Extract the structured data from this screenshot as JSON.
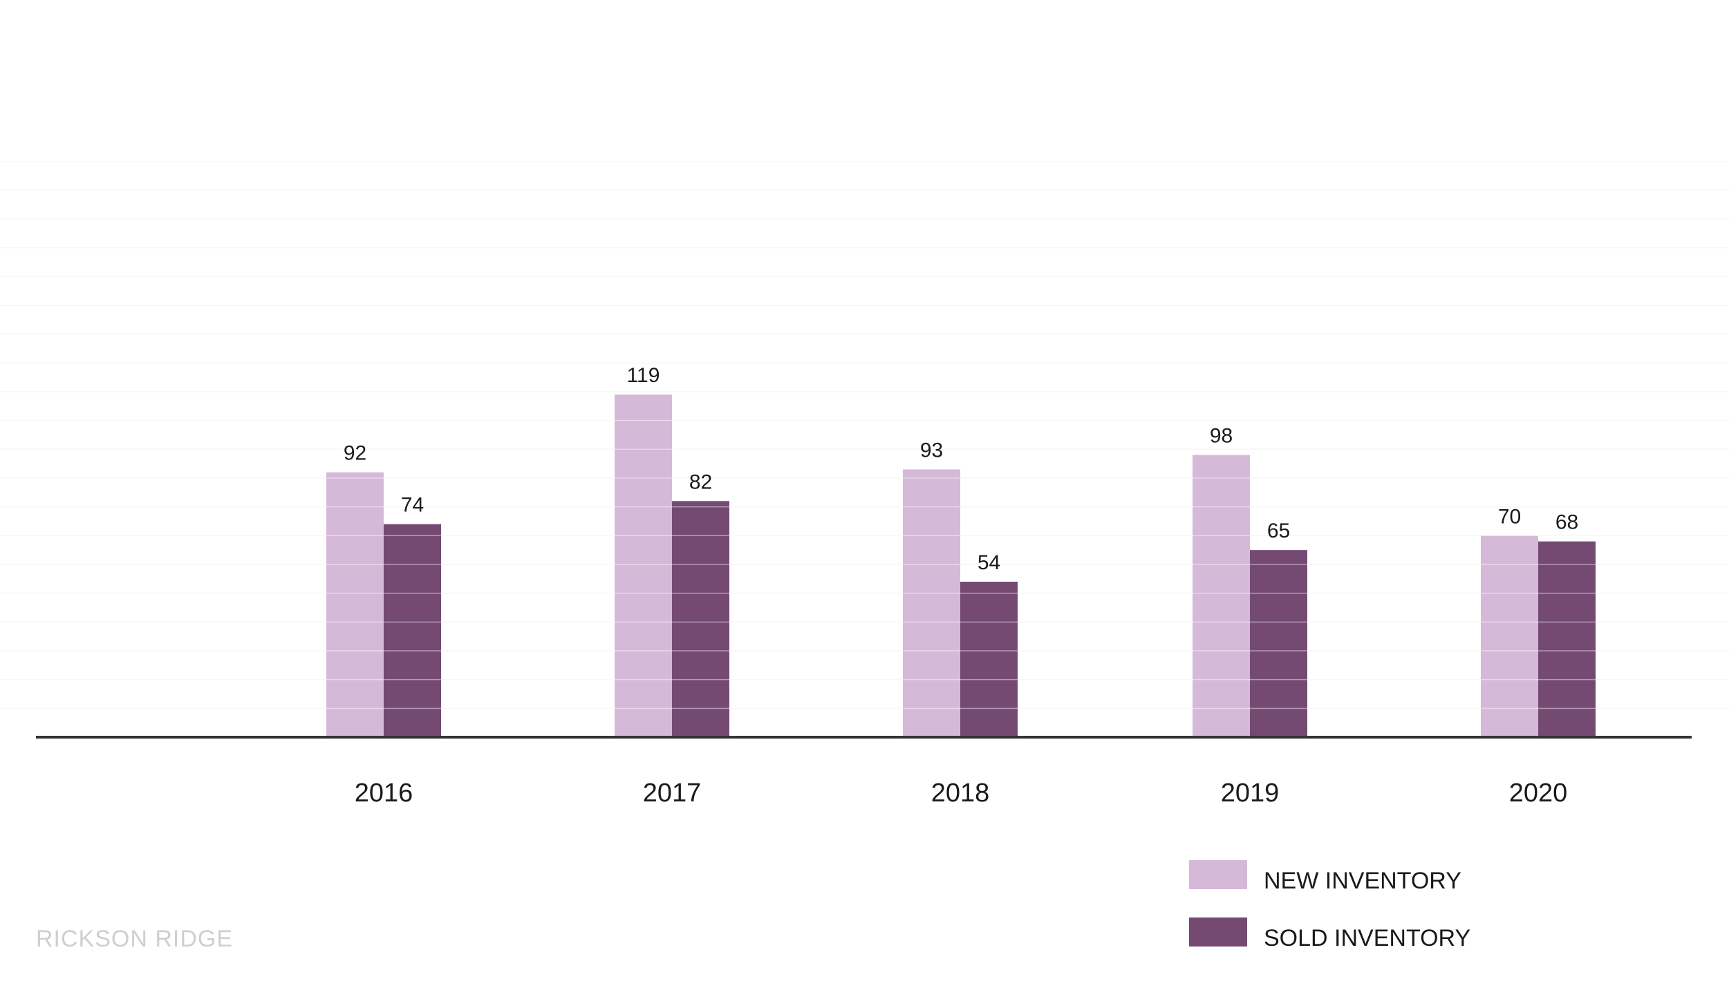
{
  "colors": {
    "new_inventory": "#d6b8d9",
    "sold_inventory": "#744a73",
    "axis": "#333333",
    "grid": "#f0f0f0",
    "watermark": "#cfcfcf"
  },
  "watermark": "RICKSON RIDGE",
  "chart_data": {
    "type": "bar",
    "title": "",
    "xlabel": "",
    "ylabel": "",
    "categories": [
      "2016",
      "2017",
      "2018",
      "2019",
      "2020"
    ],
    "series": [
      {
        "name": "NEW INVENTORY",
        "values": [
          92,
          119,
          93,
          98,
          70
        ]
      },
      {
        "name": "SOLD INVENTORY",
        "values": [
          74,
          82,
          54,
          65,
          68
        ]
      }
    ],
    "ylim": [
      0,
      200
    ],
    "grid": true,
    "legend": "bottom-right",
    "data_labels": true
  }
}
